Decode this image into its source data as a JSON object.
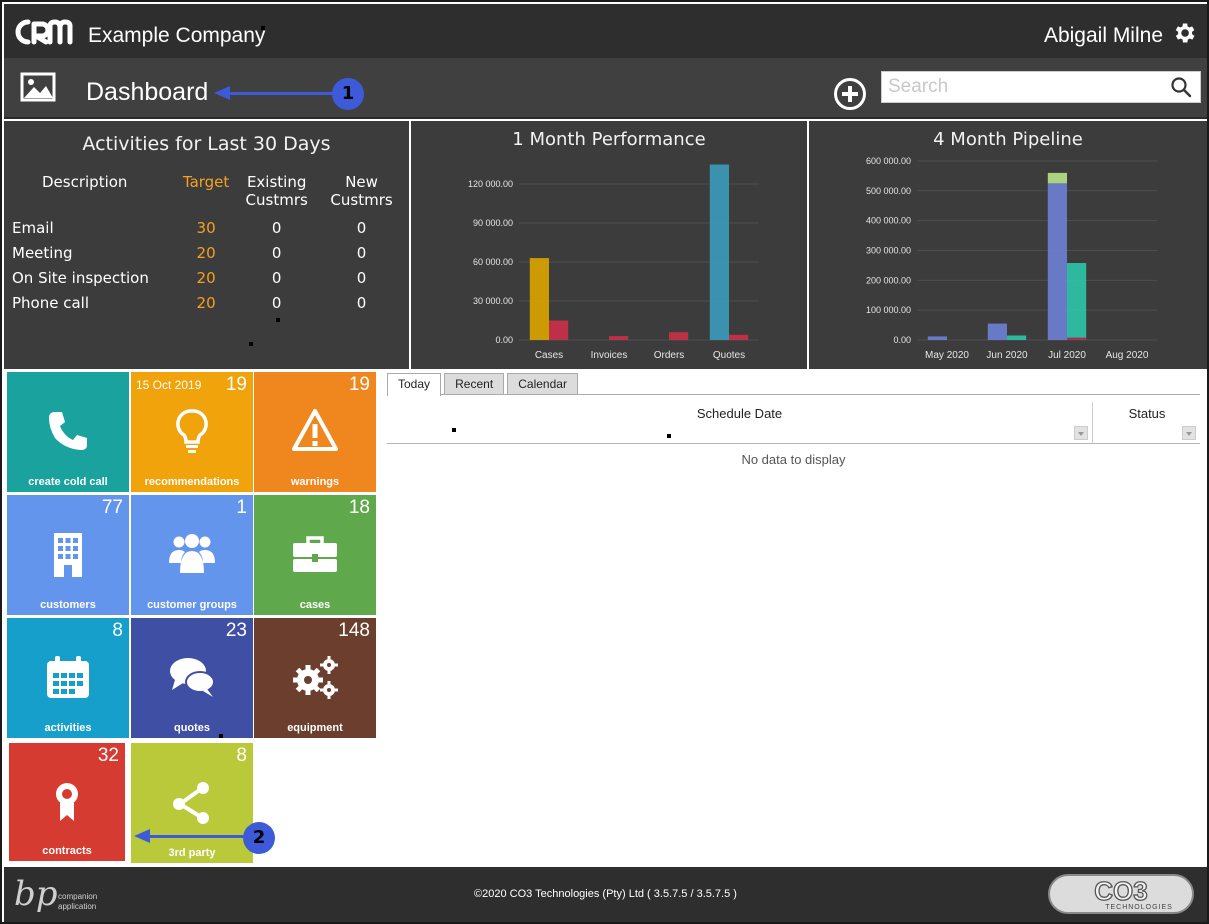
{
  "header": {
    "company": "Example Company",
    "user": "Abigail Milne"
  },
  "subbar": {
    "title": "Dashboard",
    "search_placeholder": "Search"
  },
  "markers": [
    "1",
    "2"
  ],
  "activities": {
    "title": "Activities for Last 30 Days",
    "columns": [
      "Description",
      "Target",
      "Existing Custmrs",
      "New Custmrs"
    ],
    "rows": [
      {
        "desc": "Email",
        "target": "30",
        "existing": "0",
        "new": "0"
      },
      {
        "desc": "Meeting",
        "target": "20",
        "existing": "0",
        "new": "0"
      },
      {
        "desc": "On Site inspection",
        "target": "20",
        "existing": "0",
        "new": "0"
      },
      {
        "desc": "Phone call",
        "target": "20",
        "existing": "0",
        "new": "0"
      }
    ]
  },
  "chart_data": [
    {
      "type": "bar",
      "title": "1 Month Performance",
      "categories": [
        "Cases",
        "Invoices",
        "Orders",
        "Quotes"
      ],
      "ylim": [
        0,
        140000
      ],
      "yticks": [
        "0.00",
        "30 000.00",
        "60 000.00",
        "90 000.00",
        "120 000.00"
      ],
      "ytick_values": [
        0,
        30000,
        60000,
        90000,
        120000
      ],
      "series": [
        {
          "color": "#d9a400",
          "values": [
            63000,
            0,
            0,
            0
          ]
        },
        {
          "color": "#c9304a",
          "values": [
            15000,
            3000,
            6000,
            4000
          ]
        },
        {
          "color": "#3b9ab8",
          "values": [
            0,
            0,
            0,
            135000
          ]
        }
      ]
    },
    {
      "type": "bar",
      "stacked": true,
      "title": "4 Month Pipeline",
      "categories": [
        "May 2020",
        "Jun 2020",
        "Jul 2020",
        "Aug 2020"
      ],
      "ylim": [
        0,
        620000
      ],
      "yticks": [
        "0.00",
        "100 000.00",
        "200 000.00",
        "300 000.00",
        "400 000.00",
        "500 000.00",
        "600 000.00"
      ],
      "ytick_values": [
        0,
        100000,
        200000,
        300000,
        400000,
        500000,
        600000
      ],
      "groups": [
        [
          {
            "color": "#6c7fd1",
            "values": [
              12000,
              55000,
              525000,
              0
            ]
          },
          {
            "color": "#b5df86",
            "values": [
              0,
              0,
              35000,
              0
            ]
          }
        ],
        [
          {
            "color": "#b03060",
            "values": [
              0,
              0,
              8000,
              0
            ]
          },
          {
            "color": "#2ec4a8",
            "values": [
              0,
              15000,
              250000,
              0
            ]
          }
        ]
      ]
    }
  ],
  "tiles": [
    {
      "label": "create cold call",
      "count": "",
      "date": "",
      "color": "#1aa39e",
      "icon": "phone-icon"
    },
    {
      "label": "recommendations",
      "count": "19",
      "date": "15 Oct 2019",
      "color": "#f0a30a",
      "icon": "lightbulb-icon"
    },
    {
      "label": "warnings",
      "count": "19",
      "date": "",
      "color": "#f0861e",
      "icon": "warning-icon"
    },
    {
      "label": "customers",
      "count": "77",
      "date": "",
      "color": "#6495ed",
      "icon": "building-icon"
    },
    {
      "label": "customer groups",
      "count": "1",
      "date": "",
      "color": "#6495ed",
      "icon": "users-icon"
    },
    {
      "label": "cases",
      "count": "18",
      "date": "",
      "color": "#5fa84b",
      "icon": "briefcase-icon"
    },
    {
      "label": "activities",
      "count": "8",
      "date": "",
      "color": "#179fcb",
      "icon": "calendar-icon"
    },
    {
      "label": "quotes",
      "count": "23",
      "date": "",
      "color": "#3f4fa3",
      "icon": "chat-icon"
    },
    {
      "label": "equipment",
      "count": "148",
      "date": "",
      "color": "#6b3e2e",
      "icon": "gears-icon"
    },
    {
      "label": "contracts",
      "count": "32",
      "date": "",
      "color": "#d63b32",
      "icon": "award-icon"
    },
    {
      "label": "3rd party",
      "count": "8",
      "date": "",
      "color": "#b9c93a",
      "icon": "share-icon"
    }
  ],
  "schedule": {
    "tabs": [
      "Today",
      "Recent",
      "Calendar"
    ],
    "active_tab": "Today",
    "columns": [
      "Schedule Date",
      "Status"
    ],
    "empty_text": "No data to display"
  },
  "footer": {
    "copyright": "©2020 CO3 Technologies (Pty) Ltd ( 3.5.7.5 / 3.5.7.5 )",
    "bp_logo_text": [
      "bp",
      "companion",
      "application"
    ],
    "co3_logo_text": [
      "CO3",
      "TECHNOLOGIES"
    ]
  }
}
